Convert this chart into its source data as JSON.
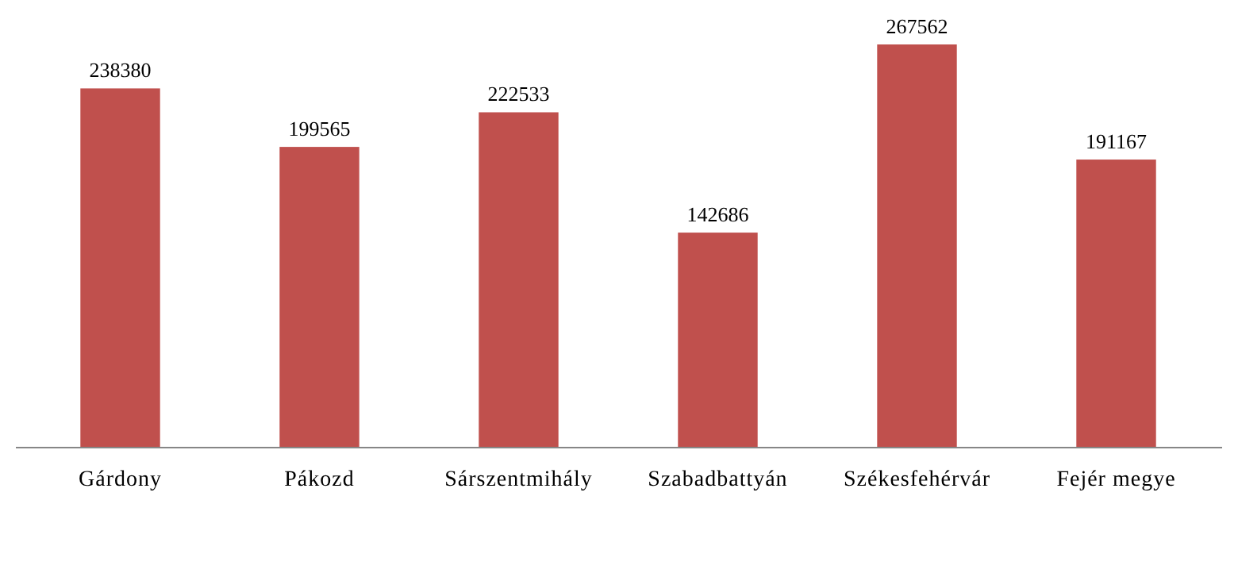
{
  "chart_data": {
    "type": "bar",
    "categories": [
      "Gárdony",
      "Pákozd",
      "Sárszentmihály",
      "Szabadbattyán",
      "Székesfehérvár",
      "Fejér megye"
    ],
    "values": [
      238380,
      199565,
      222533,
      142686,
      267562,
      191167
    ],
    "color": "#c0504d",
    "data_labels": true
  }
}
